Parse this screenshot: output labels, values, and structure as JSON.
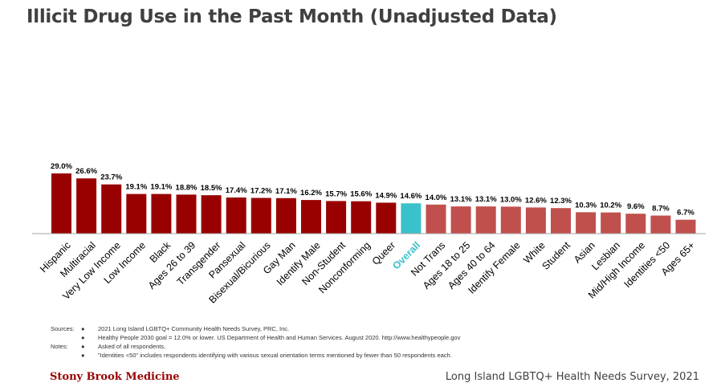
{
  "title": "Illicit Drug Use in the Past Month (Unadjusted Data)",
  "colors": {
    "primary": "#990000",
    "secondary": "#c0504d",
    "highlight": "#3bc1c9",
    "axis": "#a6a6a6"
  },
  "chart_data": {
    "type": "bar",
    "categories": [
      "Hispanic",
      "Multiracial",
      "Very Low Income",
      "Low Income",
      "Black",
      "Ages 26 to 39",
      "Transgender",
      "Pansexual",
      "Bisexual/Bicurious",
      "Gay Man",
      "Identify Male",
      "Non-Student",
      "Nonconforming",
      "Queer",
      "Overall",
      "Not Trans",
      "Ages 18 to 25",
      "Ages 40 to 64",
      "Identify Female",
      "White",
      "Student",
      "Asian",
      "Lesbian",
      "Mid/High Income",
      "Identities <50",
      "Ages 65+"
    ],
    "values": [
      29.0,
      26.6,
      23.7,
      19.1,
      19.1,
      18.8,
      18.5,
      17.4,
      17.2,
      17.1,
      16.2,
      15.7,
      15.6,
      14.9,
      14.6,
      14.0,
      13.1,
      13.1,
      13.0,
      12.6,
      12.3,
      10.3,
      10.2,
      9.6,
      8.7,
      6.7
    ],
    "labels": [
      "29.0%",
      "26.6%",
      "23.7%",
      "19.1%",
      "19.1%",
      "18.8%",
      "18.5%",
      "17.4%",
      "17.2%",
      "17.1%",
      "16.2%",
      "15.7%",
      "15.6%",
      "14.9%",
      "14.6%",
      "14.0%",
      "13.1%",
      "13.1%",
      "13.0%",
      "12.6%",
      "12.3%",
      "10.3%",
      "10.2%",
      "9.6%",
      "8.7%",
      "6.7%"
    ],
    "highlight_category": "Overall",
    "color_split_after": "Overall",
    "grid": false,
    "legend": "none"
  },
  "notes": [
    {
      "key": "Sources:",
      "text": "2021 Long Island LGBTQ+ Community Health Needs Survey, PRC, Inc."
    },
    {
      "key": "",
      "text": "Healthy People 2030 goal = 12.0% or lower. US Department of Health and Human Services. August 2020. http://www.healthypeople.gov"
    },
    {
      "key": "Notes:",
      "text": "Asked of all respondents."
    },
    {
      "key": "",
      "text": "\"Identities <50\" includes respondents identifying with various sexual orientation terms mentioned by fewer than 50 respondents each."
    }
  ],
  "footer": {
    "brand": "Stony Brook Medicine",
    "survey": "Long Island LGBTQ+ Health Needs Survey, 2021"
  }
}
